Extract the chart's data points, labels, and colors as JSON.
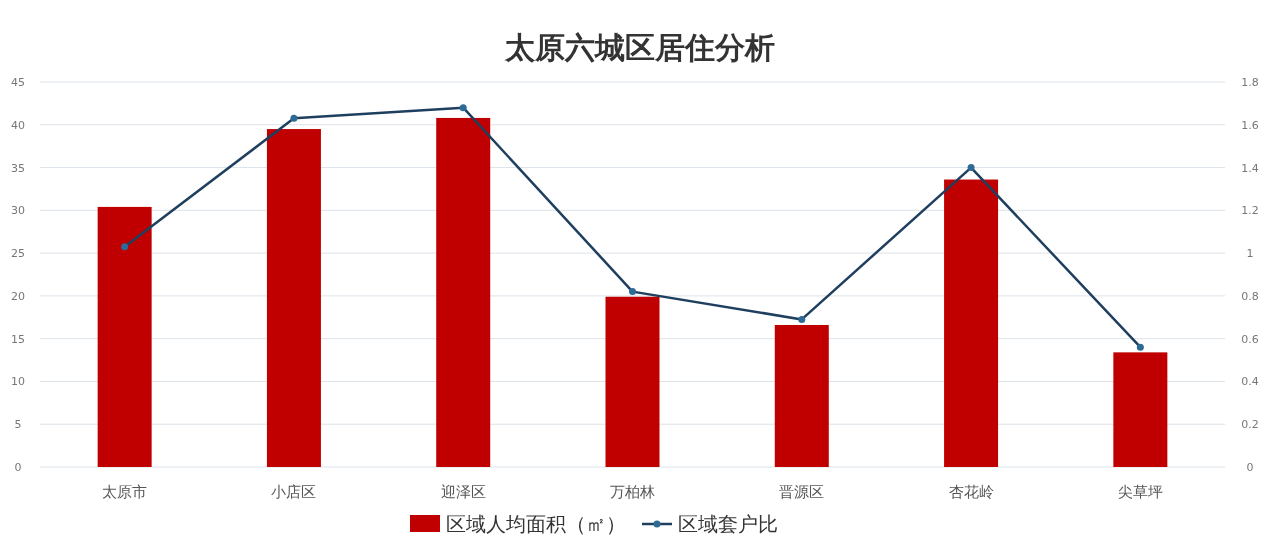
{
  "chart_data": {
    "type": "bar",
    "title": "太原六城区居住分析",
    "categories": [
      "太原市",
      "小店区",
      "迎泽区",
      "万柏林",
      "晋源区",
      "杏花岭",
      "尖草坪"
    ],
    "series": [
      {
        "name": "区域人均面积（㎡）",
        "color": "#c00000",
        "values": [
          30.4,
          39.5,
          40.8,
          19.9,
          16.6,
          33.6,
          13.4
        ]
      },
      {
        "name": "区域套户比",
        "type": "line",
        "axis": "y2",
        "color": "#1f3f5f",
        "marker": "circle",
        "values": [
          1.03,
          1.63,
          1.68,
          0.82,
          0.69,
          1.4,
          0.56
        ]
      }
    ],
    "ylim": [
      0,
      45
    ],
    "yticks": [
      0,
      5,
      10,
      15,
      20,
      25,
      30,
      35,
      40,
      45
    ],
    "y2lim": [
      0,
      1.8
    ],
    "y2ticks": [
      0,
      0.2,
      0.4,
      0.6,
      0.8,
      1,
      1.2,
      1.4,
      1.6,
      1.8
    ],
    "grid": "y",
    "legend": "bottom"
  }
}
